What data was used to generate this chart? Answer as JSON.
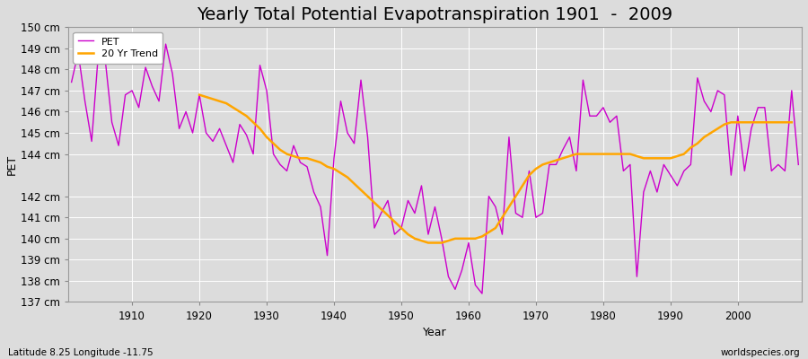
{
  "title": "Yearly Total Potential Evapotranspiration 1901  -  2009",
  "xlabel": "Year",
  "ylabel": "PET",
  "subtitle_left": "Latitude 8.25 Longitude -11.75",
  "subtitle_right": "worldspecies.org",
  "years": [
    1901,
    1902,
    1903,
    1904,
    1905,
    1906,
    1907,
    1908,
    1909,
    1910,
    1911,
    1912,
    1913,
    1914,
    1915,
    1916,
    1917,
    1918,
    1919,
    1920,
    1921,
    1922,
    1923,
    1924,
    1925,
    1926,
    1927,
    1928,
    1929,
    1930,
    1931,
    1932,
    1933,
    1934,
    1935,
    1936,
    1937,
    1938,
    1939,
    1940,
    1941,
    1942,
    1943,
    1944,
    1945,
    1946,
    1947,
    1948,
    1949,
    1950,
    1951,
    1952,
    1953,
    1954,
    1955,
    1956,
    1957,
    1958,
    1959,
    1960,
    1961,
    1962,
    1963,
    1964,
    1965,
    1966,
    1967,
    1968,
    1969,
    1970,
    1971,
    1972,
    1973,
    1974,
    1975,
    1976,
    1977,
    1978,
    1979,
    1980,
    1981,
    1982,
    1983,
    1984,
    1985,
    1986,
    1987,
    1988,
    1989,
    1990,
    1991,
    1992,
    1993,
    1994,
    1995,
    1996,
    1997,
    1998,
    1999,
    2000,
    2001,
    2002,
    2003,
    2004,
    2005,
    2006,
    2007,
    2008,
    2009
  ],
  "pet": [
    147.4,
    148.8,
    146.5,
    144.6,
    148.8,
    148.5,
    145.5,
    144.4,
    146.8,
    147.0,
    146.2,
    148.1,
    147.2,
    146.5,
    149.2,
    147.8,
    145.2,
    146.0,
    145.0,
    146.8,
    145.0,
    144.6,
    145.2,
    144.4,
    143.6,
    145.4,
    144.9,
    144.0,
    148.2,
    147.0,
    144.0,
    143.5,
    143.2,
    144.4,
    143.6,
    143.4,
    142.2,
    141.5,
    139.2,
    143.8,
    146.5,
    145.0,
    144.5,
    147.5,
    144.8,
    140.5,
    141.2,
    141.8,
    140.2,
    140.5,
    141.8,
    141.2,
    142.5,
    140.2,
    141.5,
    140.0,
    138.2,
    137.6,
    138.5,
    139.8,
    137.8,
    137.4,
    142.0,
    141.5,
    140.2,
    144.8,
    141.2,
    141.0,
    143.2,
    141.0,
    141.2,
    143.5,
    143.5,
    144.2,
    144.8,
    143.2,
    147.5,
    145.8,
    145.8,
    146.2,
    145.5,
    145.8,
    143.2,
    143.5,
    138.2,
    142.2,
    143.2,
    142.2,
    143.5,
    143.0,
    142.5,
    143.2,
    143.5,
    147.6,
    146.5,
    146.0,
    147.0,
    146.8,
    143.0,
    145.8,
    143.2,
    145.2,
    146.2,
    146.2,
    143.2,
    143.5,
    143.2,
    147.0,
    143.5
  ],
  "trend": [
    null,
    null,
    null,
    null,
    null,
    null,
    null,
    null,
    null,
    null,
    null,
    null,
    null,
    null,
    null,
    null,
    null,
    null,
    null,
    146.8,
    146.7,
    146.6,
    146.5,
    146.4,
    146.2,
    146.0,
    145.8,
    145.5,
    145.2,
    144.8,
    144.5,
    144.2,
    144.0,
    143.9,
    143.8,
    143.8,
    143.7,
    143.6,
    143.4,
    143.3,
    143.1,
    142.9,
    142.6,
    142.3,
    142.0,
    141.7,
    141.4,
    141.1,
    140.8,
    140.5,
    140.2,
    140.0,
    139.9,
    139.8,
    139.8,
    139.8,
    139.9,
    140.0,
    140.0,
    140.0,
    140.0,
    140.1,
    140.3,
    140.5,
    141.0,
    141.5,
    142.0,
    142.5,
    143.0,
    143.3,
    143.5,
    143.6,
    143.7,
    143.8,
    143.9,
    144.0,
    144.0,
    144.0,
    144.0,
    144.0,
    144.0,
    144.0,
    144.0,
    144.0,
    143.9,
    143.8,
    143.8,
    143.8,
    143.8,
    143.8,
    143.9,
    144.0,
    144.3,
    144.5,
    144.8,
    145.0,
    145.2,
    145.4,
    145.5,
    145.5,
    145.5,
    145.5,
    145.5,
    145.5,
    145.5,
    145.5,
    145.5,
    145.5
  ],
  "ylim": [
    137.0,
    150.0
  ],
  "yticks": [
    137,
    138,
    139,
    140,
    141,
    142,
    144,
    145,
    146,
    147,
    148,
    149,
    150
  ],
  "xticks": [
    1910,
    1920,
    1930,
    1940,
    1950,
    1960,
    1970,
    1980,
    1990,
    2000
  ],
  "xlim": [
    1900.5,
    2009.5
  ],
  "pet_color": "#CC00CC",
  "trend_color": "#FFA500",
  "bg_color": "#DCDCDC",
  "plot_bg_color": "#DCDCDC",
  "grid_color": "#FFFFFF",
  "legend_pet": "PET",
  "legend_trend": "20 Yr Trend",
  "title_fontsize": 14,
  "tick_fontsize": 8.5,
  "label_fontsize": 9
}
